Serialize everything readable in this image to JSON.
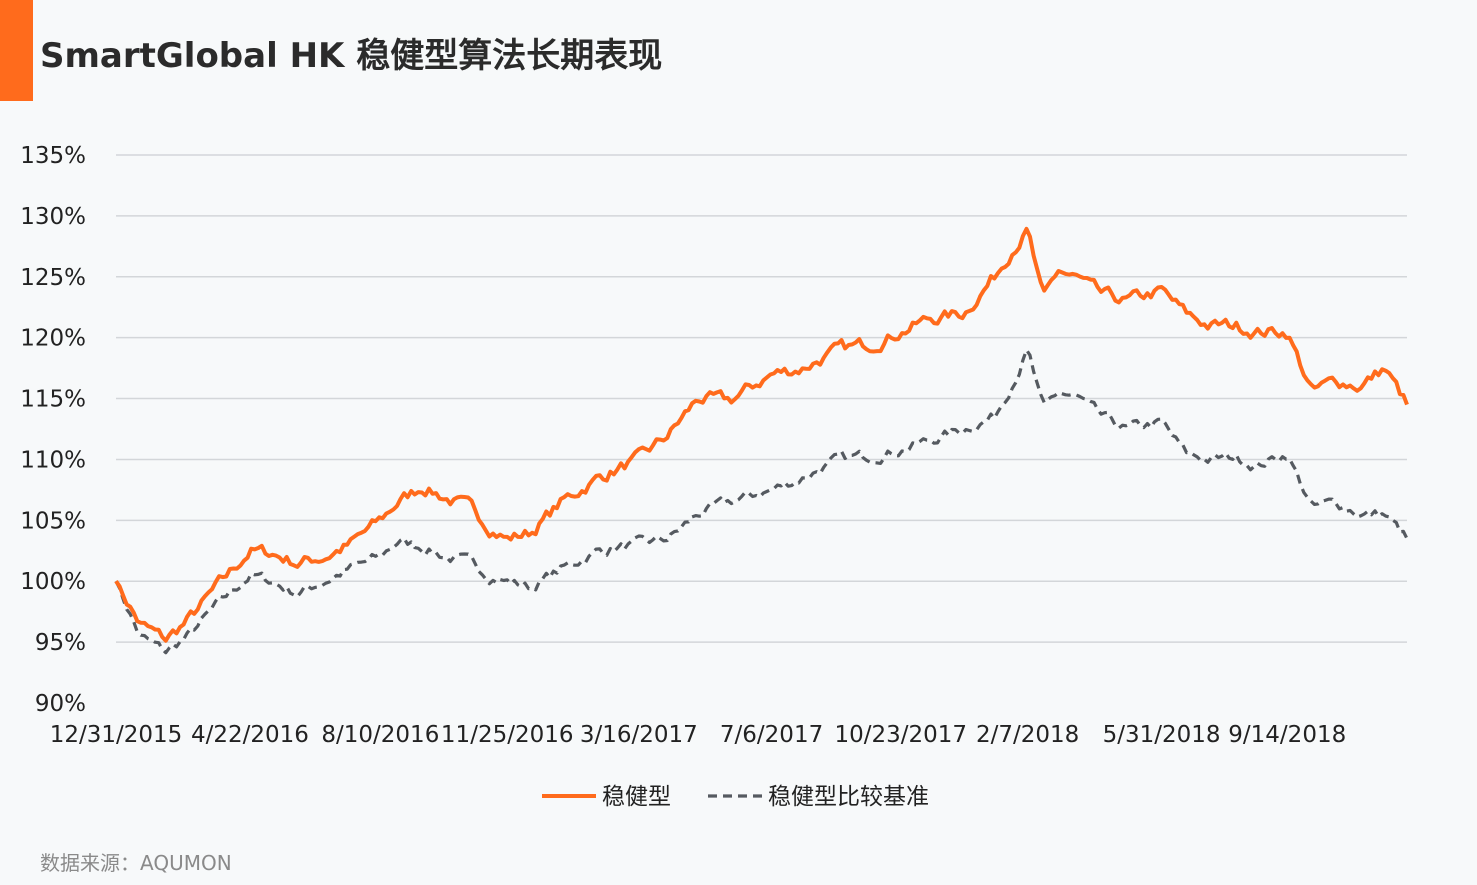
{
  "title": "SmartGlobal HK 稳健型算法长期表现",
  "source": "数据来源：AQUMON",
  "colors": {
    "accent": "#ff6b1c",
    "benchmark": "#555a60",
    "grid": "#d3d6d9",
    "background": "#f7f9fa"
  },
  "chart_data": {
    "type": "line",
    "title": "SmartGlobal HK 稳健型算法长期表现",
    "xlabel": "",
    "ylabel": "",
    "ylim": [
      90,
      135
    ],
    "y_ticks": [
      "90%",
      "95%",
      "100%",
      "105%",
      "110%",
      "115%",
      "120%",
      "125%",
      "130%",
      "135%"
    ],
    "x_ticks": [
      "12/31/2015",
      "4/22/2016",
      "8/10/2016",
      "11/25/2016",
      "3/16/2017",
      "7/6/2017",
      "10/23/2017",
      "2/7/2018",
      "5/31/2018",
      "9/14/2018"
    ],
    "grid": true,
    "legend_position": "bottom-center",
    "x": [
      "2015-12-31",
      "2016-01-20",
      "2016-02-11",
      "2016-03-01",
      "2016-03-25",
      "2016-04-22",
      "2016-05-10",
      "2016-06-01",
      "2016-06-24",
      "2016-07-15",
      "2016-08-10",
      "2016-08-25",
      "2016-09-15",
      "2016-10-05",
      "2016-10-25",
      "2016-11-10",
      "2016-11-25",
      "2016-12-15",
      "2017-01-10",
      "2017-02-10",
      "2017-03-16",
      "2017-04-10",
      "2017-05-05",
      "2017-06-01",
      "2017-07-06",
      "2017-08-01",
      "2017-09-01",
      "2017-09-28",
      "2017-10-23",
      "2017-11-15",
      "2017-12-15",
      "2018-01-10",
      "2018-01-26",
      "2018-02-07",
      "2018-02-20",
      "2018-03-05",
      "2018-03-22",
      "2018-04-10",
      "2018-05-01",
      "2018-05-31",
      "2018-06-20",
      "2018-07-10",
      "2018-08-01",
      "2018-08-20",
      "2018-09-14",
      "2018-10-05",
      "2018-10-25",
      "2018-11-15",
      "2018-12-05",
      "2018-12-24"
    ],
    "series": [
      {
        "name": "稳健型",
        "values": [
          100.0,
          96.5,
          95.2,
          96.8,
          99.5,
          102.5,
          102.3,
          101.5,
          102.0,
          103.0,
          105.0,
          106.5,
          107.8,
          106.8,
          106.0,
          104.5,
          103.5,
          104.0,
          106.5,
          108.5,
          110.0,
          112.0,
          115.0,
          114.8,
          117.0,
          117.5,
          119.0,
          119.5,
          120.5,
          121.5,
          122.0,
          125.0,
          127.5,
          128.8,
          123.0,
          125.5,
          124.8,
          123.5,
          123.0,
          123.8,
          122.0,
          121.0,
          121.0,
          120.5,
          120.5,
          115.5,
          116.5,
          116.0,
          117.5,
          114.5
        ]
      },
      {
        "name": "稳健型比较基准",
        "values": [
          100.0,
          95.5,
          94.2,
          95.5,
          98.0,
          100.5,
          100.0,
          99.0,
          100.0,
          101.0,
          102.0,
          103.3,
          102.8,
          102.0,
          101.5,
          100.5,
          100.0,
          99.5,
          101.0,
          102.5,
          103.0,
          103.5,
          105.5,
          106.5,
          107.5,
          108.5,
          110.0,
          110.3,
          110.8,
          111.5,
          112.5,
          113.5,
          116.5,
          119.0,
          114.0,
          115.5,
          115.0,
          113.5,
          112.5,
          113.0,
          110.5,
          110.0,
          110.2,
          109.5,
          110.5,
          106.0,
          106.5,
          105.5,
          105.5,
          103.5
        ]
      }
    ]
  }
}
